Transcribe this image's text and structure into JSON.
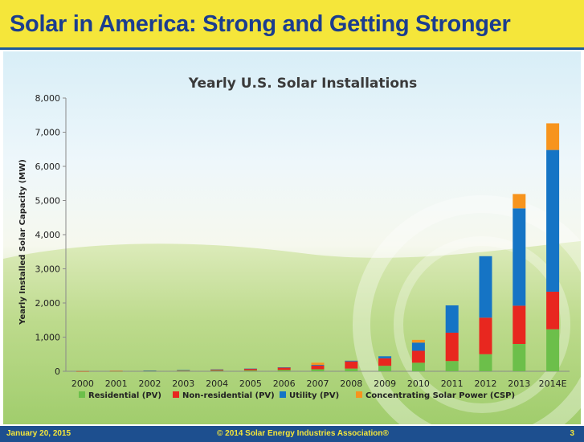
{
  "slide": {
    "title": "Solar in America: Strong and Getting Stronger",
    "footer_date": "January 20, 2015",
    "footer_copyright": "© 2014 Solar Energy Industries Association®",
    "page_number": "3"
  },
  "colors": {
    "title_band": "#f5e63a",
    "title_text": "#1b3d8f",
    "footer_band": "#1d4f8f",
    "footer_text": "#f5e63a"
  },
  "chart_data": {
    "type": "bar",
    "stacked": true,
    "title": "Yearly U.S. Solar Installations",
    "xlabel": "",
    "ylabel": "Yearly Installed Solar Capacity (MW)",
    "ylim": [
      0,
      8000
    ],
    "yticks": [
      0,
      1000,
      2000,
      3000,
      4000,
      5000,
      6000,
      7000,
      8000
    ],
    "ytick_labels": [
      "0",
      "1,000",
      "2,000",
      "3,000",
      "4,000",
      "5,000",
      "6,000",
      "7,000",
      "8,000"
    ],
    "grid": false,
    "legend_position": "bottom",
    "categories": [
      "2000",
      "2001",
      "2002",
      "2003",
      "2004",
      "2005",
      "2006",
      "2007",
      "2008",
      "2009",
      "2010",
      "2011",
      "2012",
      "2013",
      "2014E"
    ],
    "series": [
      {
        "name": "Residential (PV)",
        "color": "#6cbf4a",
        "values": [
          2,
          5,
          10,
          15,
          20,
          28,
          40,
          60,
          80,
          160,
          250,
          300,
          500,
          800,
          1230
        ]
      },
      {
        "name": "Non-residential (PV)",
        "color": "#e8271f",
        "values": [
          1,
          4,
          10,
          20,
          30,
          45,
          70,
          110,
          210,
          220,
          350,
          830,
          1070,
          1120,
          1100
        ]
      },
      {
        "name": "Utility (PV)",
        "color": "#1574c5",
        "values": [
          0,
          0,
          2,
          2,
          3,
          5,
          5,
          20,
          20,
          60,
          240,
          800,
          1800,
          2850,
          4150
        ]
      },
      {
        "name": "Concentrating Solar Power (CSP)",
        "color": "#f7941d",
        "values": [
          0,
          0,
          0,
          0,
          0,
          0,
          0,
          60,
          0,
          0,
          80,
          0,
          0,
          420,
          780
        ]
      }
    ]
  }
}
